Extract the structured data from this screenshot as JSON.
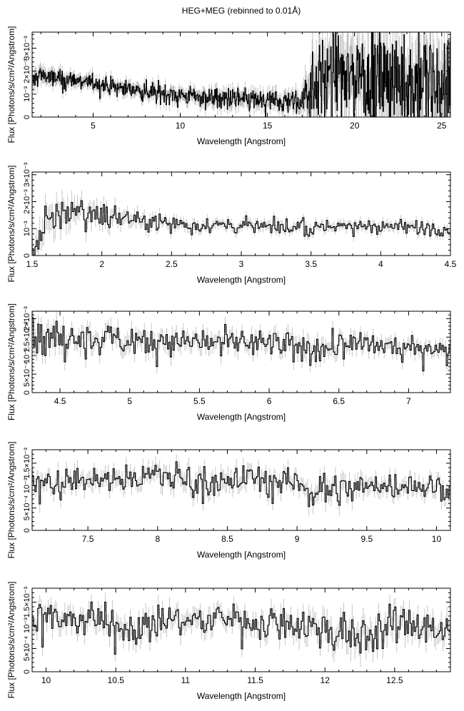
{
  "page": {
    "title": "HEG+MEG (rebinned to 0.01Å)"
  },
  "style": {
    "line_color": "#000000",
    "errorbar_color": "#b8b8b8",
    "background": "#ffffff"
  },
  "chart_data": [
    {
      "type": "line",
      "xlabel": "Wavelength [Angstrom]",
      "ylabel": "Flux [Photons/s/cm²/Angstrom]",
      "xlim": [
        1.5,
        25.5
      ],
      "ylim": [
        0,
        0.0037
      ],
      "xticks": [
        5,
        10,
        15,
        20,
        25
      ],
      "xtick_labels": [
        "5",
        "10",
        "15",
        "20",
        "25"
      ],
      "yticks": [
        0,
        0.001,
        0.002,
        0.003
      ],
      "ytick_labels": [
        "0",
        "10⁻³",
        "2×10⁻³",
        "3×10⁻³"
      ],
      "series": [
        {
          "x": [
            1.5,
            2.0,
            2.5,
            3.0,
            4.0,
            5.0,
            6.0,
            7.0,
            8.0,
            9.0,
            10.0,
            11.0,
            12.0,
            13.0,
            14.0,
            15.0,
            16.0,
            17.0,
            17.5,
            18.0,
            19.0,
            20.0,
            21.0,
            22.0,
            23.0,
            24.0,
            25.0,
            25.5
          ],
          "y": [
            0.0015,
            0.0019,
            0.0017,
            0.0017,
            0.0016,
            0.0015,
            0.00135,
            0.00125,
            0.00115,
            0.00105,
            0.00095,
            0.0009,
            0.00085,
            0.0008,
            0.00075,
            0.0007,
            0.0007,
            0.0007,
            0.0015,
            0.0017,
            0.0018,
            0.0018,
            0.0019,
            0.0017,
            0.0016,
            0.0015,
            0.0014,
            0.0014
          ],
          "scatter": [
            0.00028,
            0.00025,
            0.0002,
            0.0002,
            0.00018,
            0.00018,
            0.00018,
            0.00018,
            0.0002,
            0.0002,
            0.0002,
            0.0002,
            0.00022,
            0.00024,
            0.00025,
            0.00026,
            0.00027,
            0.00028,
            0.0009,
            0.0009,
            0.0009,
            0.001,
            0.001,
            0.0011,
            0.0011,
            0.0011,
            0.0011,
            0.0011
          ],
          "bin_width": 0.03
        }
      ]
    },
    {
      "type": "line",
      "xlabel": "Wavelength [Angstrom]",
      "ylabel": "Flux [Photons/s/cm²/Angstrom]",
      "xlim": [
        1.5,
        4.5
      ],
      "ylim": [
        0,
        0.0031
      ],
      "xticks": [
        1.5,
        2.0,
        2.5,
        3.0,
        3.5,
        4.0,
        4.5
      ],
      "xtick_labels": [
        "1.5",
        "2",
        "2.5",
        "3",
        "3.5",
        "4",
        "4.5"
      ],
      "yticks": [
        0,
        0.001,
        0.002,
        0.003
      ],
      "ytick_labels": [
        "0",
        "10⁻³",
        "2×10⁻³",
        "3×10⁻³"
      ],
      "series": [
        {
          "x": [
            1.5,
            1.6,
            1.7,
            1.8,
            1.9,
            2.0,
            2.2,
            2.5,
            3.0,
            3.5,
            4.0,
            4.5
          ],
          "y": [
            0.0002,
            0.0012,
            0.0016,
            0.0018,
            0.0017,
            0.0015,
            0.0014,
            0.0012,
            0.0011,
            0.0011,
            0.0011,
            0.001
          ],
          "scatter": [
            0.00035,
            0.0004,
            0.00038,
            0.00035,
            0.0003,
            0.00025,
            0.0002,
            0.00015,
            0.00014,
            0.00014,
            0.00014,
            0.00014
          ],
          "bin_width": 0.01
        }
      ]
    },
    {
      "type": "line",
      "xlabel": "Wavelength [Angstrom]",
      "ylabel": "Flux [Photons/s/cm²/Angstrom]",
      "xlim": [
        4.3,
        7.3
      ],
      "ylim": [
        0,
        0.0022
      ],
      "xticks": [
        4.5,
        5.0,
        5.5,
        6.0,
        6.5,
        7.0
      ],
      "xtick_labels": [
        "4.5",
        "5",
        "5.5",
        "6",
        "6.5",
        "7"
      ],
      "yticks": [
        0,
        0.0005,
        0.001,
        0.0015,
        0.002
      ],
      "ytick_labels": [
        "0",
        "5×10⁻⁴",
        "10⁻³",
        "1.5×10⁻³",
        "2×10⁻³"
      ],
      "series": [
        {
          "x": [
            4.3,
            4.7,
            5.0,
            5.5,
            6.0,
            6.2,
            6.5,
            7.0,
            7.3
          ],
          "y": [
            0.0015,
            0.00148,
            0.00145,
            0.0014,
            0.00135,
            0.00115,
            0.0013,
            0.00125,
            0.0012
          ],
          "scatter": [
            0.00022,
            0.0002,
            0.0002,
            0.00018,
            0.00016,
            0.0002,
            0.00016,
            0.00014,
            0.00014
          ],
          "bin_width": 0.01
        }
      ]
    },
    {
      "type": "line",
      "xlabel": "Wavelength [Angstrom]",
      "ylabel": "Flux [Photons/s/cm²/Angstrom]",
      "xlim": [
        7.1,
        10.1
      ],
      "ylim": [
        0,
        0.0018
      ],
      "xticks": [
        7.5,
        8.0,
        8.5,
        9.0,
        9.5,
        10.0
      ],
      "xtick_labels": [
        "7.5",
        "8",
        "8.5",
        "9",
        "9.5",
        "10"
      ],
      "yticks": [
        0,
        0.0005,
        0.001,
        0.0015
      ],
      "ytick_labels": [
        "0",
        "5×10⁻⁴",
        "10⁻³",
        "1.5×10⁻³"
      ],
      "series": [
        {
          "x": [
            7.1,
            7.5,
            7.9,
            8.0,
            8.5,
            8.7,
            9.0,
            9.25,
            9.5,
            10.0,
            10.1
          ],
          "y": [
            0.0011,
            0.00115,
            0.0012,
            0.00125,
            0.00105,
            0.0012,
            0.00105,
            0.0009,
            0.001,
            0.001,
            0.00095
          ],
          "scatter": [
            0.00014,
            0.00014,
            0.00014,
            0.00016,
            0.00016,
            0.00014,
            0.00014,
            0.00018,
            0.00015,
            0.00014,
            0.00014
          ],
          "bin_width": 0.01
        }
      ]
    },
    {
      "type": "line",
      "xlabel": "Wavelength [Angstrom]",
      "ylabel": "Flux [Photons/s/cm²/Angstrom]",
      "xlim": [
        9.9,
        12.9
      ],
      "ylim": [
        0,
        0.0018
      ],
      "xticks": [
        10.0,
        10.5,
        11.0,
        11.5,
        12.0,
        12.5
      ],
      "xtick_labels": [
        "10",
        "10.5",
        "11",
        "11.5",
        "12",
        "12.5"
      ],
      "yticks": [
        0,
        0.0005,
        0.001,
        0.0015
      ],
      "ytick_labels": [
        "0",
        "5×10⁻⁴",
        "10⁻³",
        "1.5×10⁻³"
      ],
      "series": [
        {
          "x": [
            9.9,
            10.3,
            10.6,
            10.8,
            11.0,
            11.3,
            11.5,
            11.8,
            12.0,
            12.2,
            12.5,
            12.9
          ],
          "y": [
            0.00115,
            0.0012,
            0.00095,
            0.00115,
            0.0011,
            0.00115,
            0.00105,
            0.00105,
            0.00095,
            0.0007,
            0.00105,
            0.00085
          ],
          "scatter": [
            0.00016,
            0.00016,
            0.00018,
            0.00016,
            0.00016,
            0.00016,
            0.00016,
            0.00018,
            0.0002,
            0.00024,
            0.0002,
            0.0002
          ],
          "bin_width": 0.01
        }
      ]
    }
  ]
}
